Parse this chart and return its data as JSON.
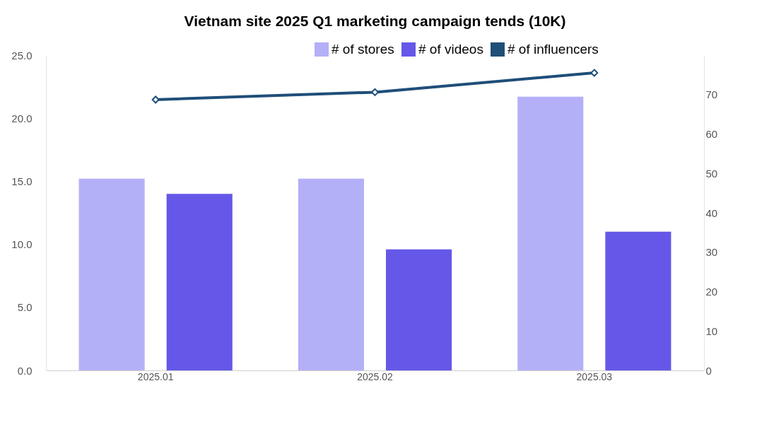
{
  "chart_data": {
    "type": "bar",
    "title": "Vietnam  site 2025 Q1 marketing campaign tends (10K)",
    "categories": [
      "2025.01",
      "2025.02",
      "2025.03"
    ],
    "series": [
      {
        "name": "# of stores",
        "color": "#b4b0f8",
        "values": [
          15.2,
          15.2,
          21.7
        ]
      },
      {
        "name": "# of videos",
        "color": "#6558e8",
        "values": [
          14.0,
          9.6,
          11.0
        ]
      },
      {
        "name": "# of influencers",
        "color": "#1f4e79",
        "type": "line",
        "axis": "y2",
        "values": [
          68.7,
          70.6,
          75.5
        ]
      }
    ],
    "ylim": [
      0,
      25
    ],
    "yticks": [
      {
        "value": 0,
        "label": "0.0"
      },
      {
        "value": 5,
        "label": "5.0"
      },
      {
        "value": 10,
        "label": "10.0"
      },
      {
        "value": 15,
        "label": "15.0"
      },
      {
        "value": 20,
        "label": "20.0"
      },
      {
        "value": 25,
        "label": "25.0"
      }
    ],
    "y2lim": [
      0,
      80
    ],
    "y2ticks": [
      0,
      10,
      20,
      30,
      40,
      50,
      60,
      70
    ],
    "grid": false,
    "legend": "top right",
    "marker": "diamond",
    "line_style": "solid"
  }
}
